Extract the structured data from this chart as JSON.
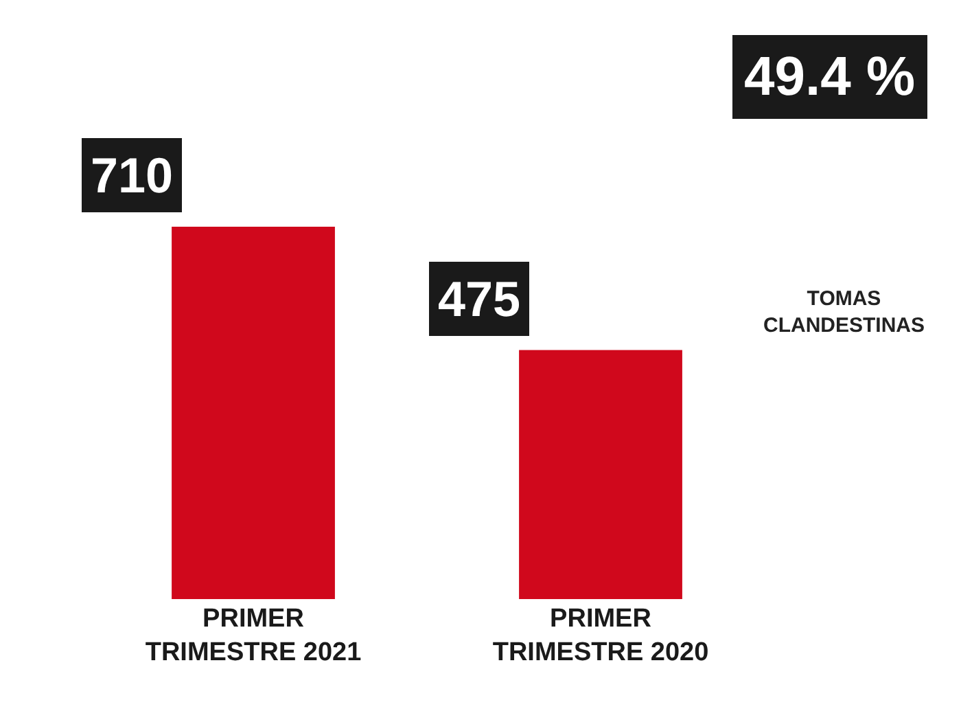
{
  "chart_data": {
    "type": "bar",
    "categories": [
      "PRIMER TRIMESTRE 2021",
      "PRIMER TRIMESTRE 2020"
    ],
    "values": [
      710,
      475
    ],
    "color": "#d0081c",
    "data_labels": true,
    "annotations": [
      "49.4 %",
      "TOMAS CLANDESTINAS"
    ]
  }
}
